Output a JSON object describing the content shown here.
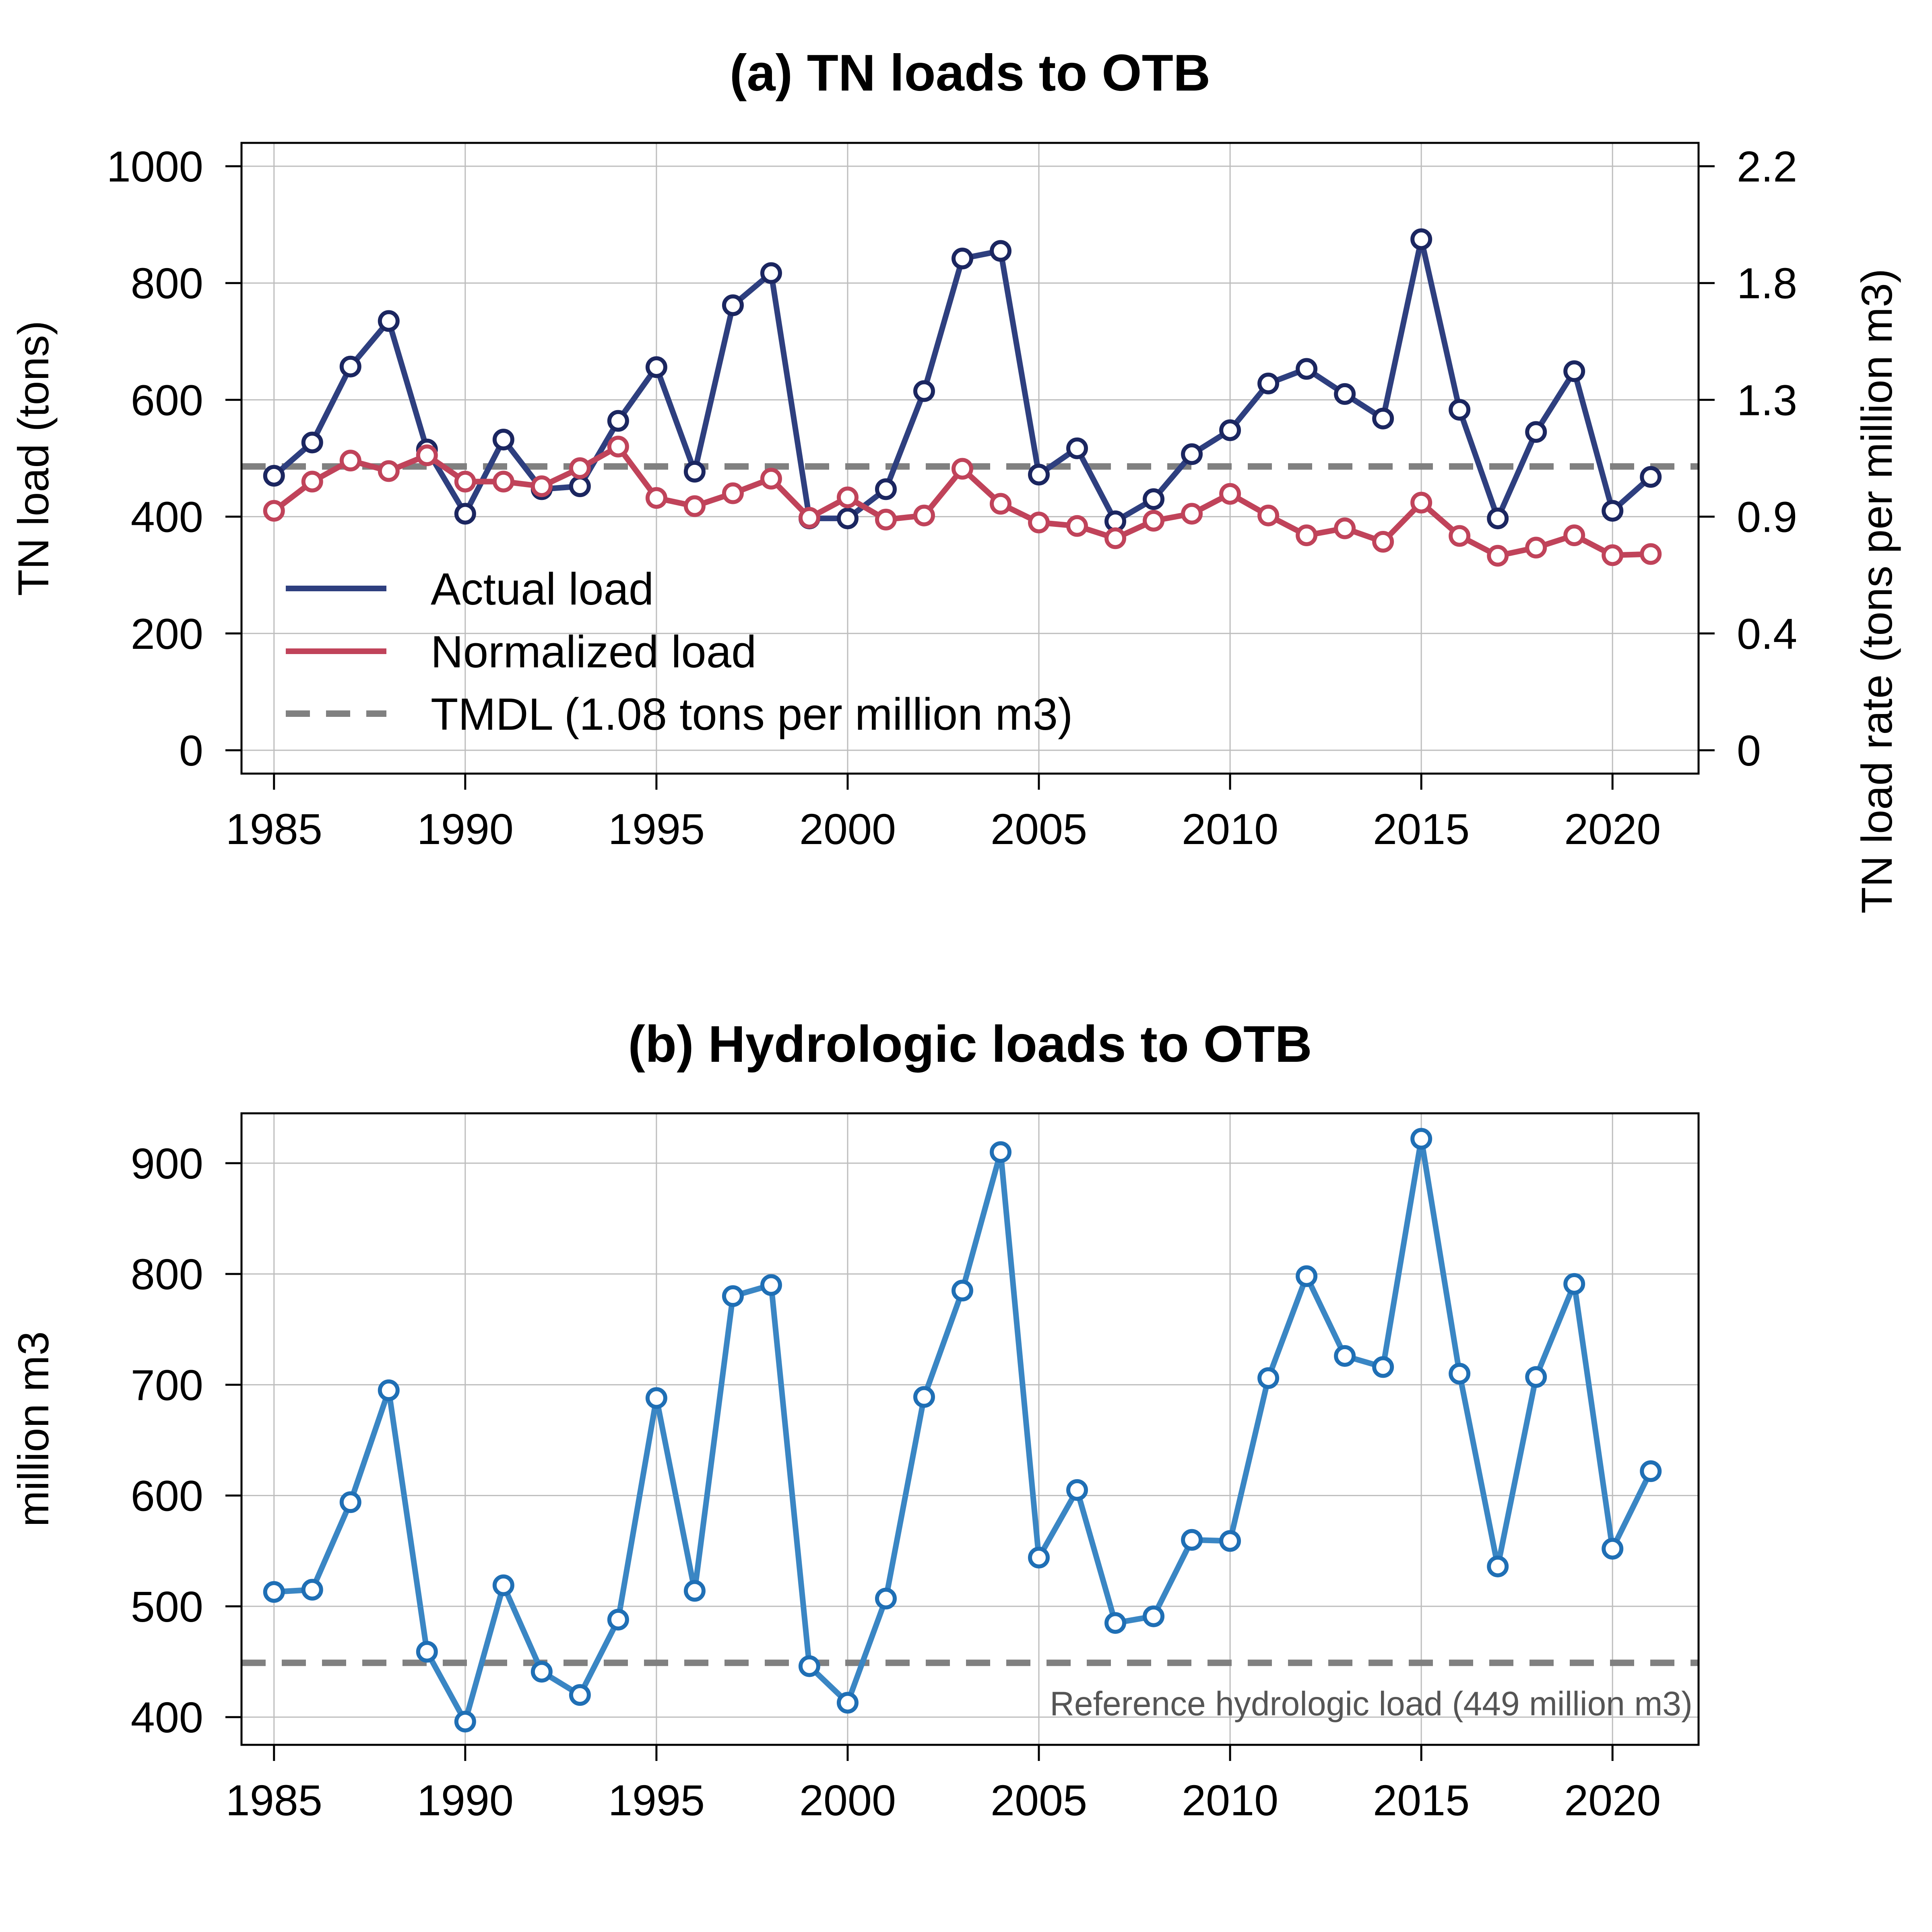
{
  "colors": {
    "actual": "#2e3f7f",
    "actual_marker": "#1b2660",
    "normalized": "#c0435a",
    "hydro": "#3a86c4",
    "hydro_marker": "#1f6fb5",
    "reference": "#808080",
    "grid": "#bdbdbd"
  },
  "chart_data": [
    {
      "type": "line",
      "title": "(a) TN loads to OTB",
      "ylabel": "TN load (tons)",
      "y2label": "TN load rate (tons per million m3)",
      "xlim": [
        1984.15,
        2022.25
      ],
      "ylim": [
        -40,
        1040
      ],
      "x_ticks": [
        1985,
        1990,
        1995,
        2000,
        2005,
        2010,
        2015,
        2020
      ],
      "y_ticks": [
        0,
        200,
        400,
        600,
        800,
        1000
      ],
      "y2_ticks": [
        {
          "label": "0",
          "at": 0
        },
        {
          "label": "0.4",
          "at": 200
        },
        {
          "label": "0.9",
          "at": 400
        },
        {
          "label": "1.3",
          "at": 600
        },
        {
          "label": "1.8",
          "at": 800
        },
        {
          "label": "2.2",
          "at": 1000
        }
      ],
      "grid": true,
      "x": [
        1985,
        1986,
        1987,
        1988,
        1989,
        1990,
        1991,
        1992,
        1993,
        1994,
        1995,
        1996,
        1997,
        1998,
        1999,
        2000,
        2001,
        2002,
        2003,
        2004,
        2005,
        2006,
        2007,
        2008,
        2009,
        2010,
        2011,
        2012,
        2013,
        2014,
        2015,
        2016,
        2017,
        2018,
        2019,
        2020,
        2021
      ],
      "series": [
        {
          "name": "Actual load",
          "color_key": "actual",
          "values": [
            470,
            527,
            657,
            735,
            515,
            405,
            532,
            447,
            452,
            564,
            656,
            477,
            762,
            817,
            397,
            397,
            447,
            615,
            842,
            855,
            472,
            517,
            392,
            430,
            507,
            548,
            628,
            653,
            610,
            568,
            875,
            583,
            397,
            545,
            649,
            410,
            468
          ]
        },
        {
          "name": "Normalized load",
          "color_key": "normalized",
          "values": [
            410,
            460,
            496,
            478,
            505,
            460,
            460,
            452,
            483,
            520,
            432,
            418,
            440,
            465,
            398,
            433,
            395,
            402,
            482,
            422,
            390,
            384,
            363,
            393,
            405,
            439,
            402,
            368,
            380,
            357,
            424,
            367,
            333,
            347,
            368,
            334,
            336
          ]
        }
      ],
      "reference": {
        "name": "TMDL (1.08 tons per million m3)",
        "value": 486
      },
      "legend_position": "bottom-left"
    },
    {
      "type": "line",
      "title": "(b) Hydrologic loads to OTB",
      "ylabel": "million m3",
      "xlim": [
        1984.15,
        2022.25
      ],
      "ylim": [
        375,
        945
      ],
      "x_ticks": [
        1985,
        1990,
        1995,
        2000,
        2005,
        2010,
        2015,
        2020
      ],
      "y_ticks": [
        400,
        500,
        600,
        700,
        800,
        900
      ],
      "grid": true,
      "x": [
        1985,
        1986,
        1987,
        1988,
        1989,
        1990,
        1991,
        1992,
        1993,
        1994,
        1995,
        1996,
        1997,
        1998,
        1999,
        2000,
        2001,
        2002,
        2003,
        2004,
        2005,
        2006,
        2007,
        2008,
        2009,
        2010,
        2011,
        2012,
        2013,
        2014,
        2015,
        2016,
        2017,
        2018,
        2019,
        2020,
        2021
      ],
      "series": [
        {
          "color_key": "hydro",
          "values": [
            513,
            515,
            594,
            695,
            459,
            396,
            519,
            441,
            420,
            488,
            688,
            514,
            780,
            790,
            446,
            413,
            507,
            689,
            785,
            910,
            544,
            605,
            485,
            491,
            560,
            559,
            706,
            798,
            726,
            716,
            922,
            710,
            536,
            707,
            791,
            552,
            622
          ]
        }
      ],
      "reference": {
        "name": "Reference hydrologic load (449 million m3)",
        "value": 449
      }
    }
  ]
}
